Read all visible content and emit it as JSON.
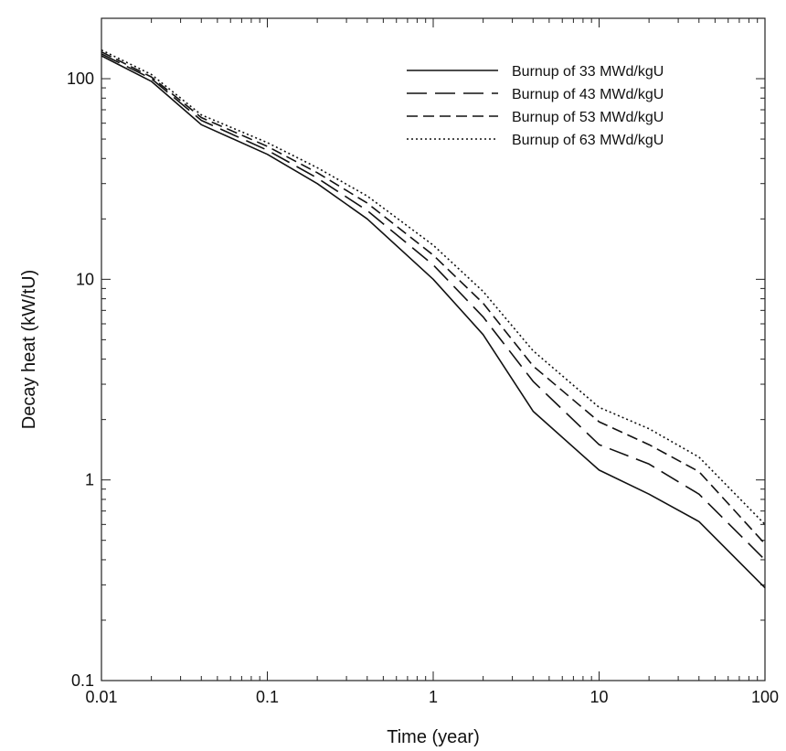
{
  "chart_data": {
    "type": "line",
    "title": "",
    "xlabel": "Time (year)",
    "ylabel": "Decay heat (kW/tU)",
    "xscale": "log",
    "yscale": "log",
    "xlim": [
      0.01,
      100
    ],
    "ylim": [
      0.1,
      200
    ],
    "grid": false,
    "legend_position": "top-right",
    "x_ticks": [
      {
        "value": 0.01,
        "label": "0.01"
      },
      {
        "value": 0.1,
        "label": "0.1"
      },
      {
        "value": 1,
        "label": "1"
      },
      {
        "value": 10,
        "label": "10"
      },
      {
        "value": 100,
        "label": "100"
      }
    ],
    "y_ticks": [
      {
        "value": 0.1,
        "label": "0.1"
      },
      {
        "value": 1,
        "label": "1"
      },
      {
        "value": 10,
        "label": "10"
      },
      {
        "value": 100,
        "label": "100"
      }
    ],
    "x": [
      0.01,
      0.02,
      0.04,
      0.1,
      0.2,
      0.4,
      1,
      2,
      4,
      10,
      20,
      40,
      100
    ],
    "series": [
      {
        "name": "Burnup of 33 MWd/kgU",
        "style": "solid",
        "values": [
          130,
          97,
          59,
          42,
          30,
          20,
          10,
          5.3,
          2.2,
          1.12,
          0.85,
          0.62,
          0.29
        ]
      },
      {
        "name": "Burnup of 43 MWd/kgU",
        "style": "long-dash",
        "values": [
          133,
          100,
          62,
          44,
          32,
          22,
          11.8,
          6.5,
          3.1,
          1.5,
          1.2,
          0.85,
          0.4
        ]
      },
      {
        "name": "Burnup of 53 MWd/kgU",
        "style": "short-dash",
        "values": [
          136,
          102,
          64,
          46,
          34,
          24,
          13.2,
          7.6,
          3.7,
          1.95,
          1.5,
          1.1,
          0.48
        ]
      },
      {
        "name": "Burnup of 63 MWd/kgU",
        "style": "dotted",
        "values": [
          139,
          105,
          66,
          48,
          36,
          26,
          14.8,
          8.7,
          4.4,
          2.3,
          1.8,
          1.3,
          0.6
        ]
      }
    ]
  },
  "colors": {
    "line": "#111111",
    "axis": "#222222",
    "background": "#ffffff"
  }
}
